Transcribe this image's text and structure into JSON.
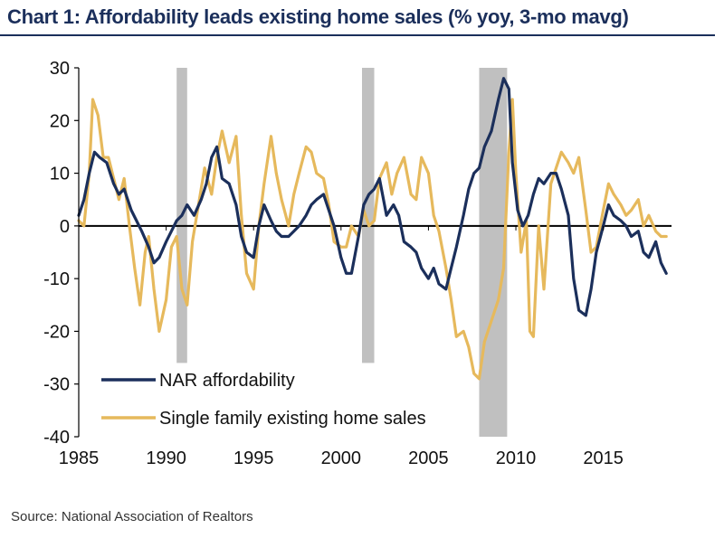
{
  "title": "Chart 1: Affordability leads existing home sales (% yoy, 3-mo mavg)",
  "source": "Source: National Association of Realtors",
  "chart_data": {
    "type": "line",
    "title": "Chart 1: Affordability leads existing home sales (% yoy, 3-mo mavg)",
    "xlabel": "",
    "ylabel": "",
    "xlim": [
      1985,
      2018.9
    ],
    "ylim": [
      -40,
      30
    ],
    "x_ticks": [
      1985,
      1990,
      1995,
      2000,
      2005,
      2010,
      2015
    ],
    "y_ticks": [
      30,
      20,
      10,
      0,
      -10,
      -20,
      -30,
      -40
    ],
    "grid": false,
    "legend_position": "bottom-left",
    "recessions": [
      [
        1990.6,
        1991.2
      ],
      [
        2001.2,
        2001.9
      ],
      [
        2007.9,
        2009.5
      ]
    ],
    "colors": {
      "NAR affordability": "#1b2f5b",
      "Single family existing home sales": "#e6b95c",
      "recession": "#c0c0c0"
    },
    "series": [
      {
        "name": "NAR affordability",
        "points": [
          [
            1985.0,
            2
          ],
          [
            1985.3,
            5
          ],
          [
            1985.6,
            10
          ],
          [
            1985.9,
            14
          ],
          [
            1986.2,
            13
          ],
          [
            1986.6,
            12
          ],
          [
            1987.0,
            8
          ],
          [
            1987.3,
            6
          ],
          [
            1987.6,
            7
          ],
          [
            1988.0,
            3
          ],
          [
            1988.3,
            1
          ],
          [
            1988.6,
            -1
          ],
          [
            1989.0,
            -4
          ],
          [
            1989.3,
            -7
          ],
          [
            1989.6,
            -6
          ],
          [
            1990.0,
            -3
          ],
          [
            1990.3,
            -1
          ],
          [
            1990.6,
            1
          ],
          [
            1990.9,
            2
          ],
          [
            1991.2,
            4
          ],
          [
            1991.6,
            2
          ],
          [
            1992.0,
            5
          ],
          [
            1992.3,
            8
          ],
          [
            1992.6,
            13
          ],
          [
            1992.9,
            15
          ],
          [
            1993.2,
            9
          ],
          [
            1993.6,
            8
          ],
          [
            1994.0,
            4
          ],
          [
            1994.3,
            -2
          ],
          [
            1994.6,
            -5
          ],
          [
            1995.0,
            -6
          ],
          [
            1995.3,
            0
          ],
          [
            1995.6,
            4
          ],
          [
            1996.0,
            1
          ],
          [
            1996.3,
            -1
          ],
          [
            1996.6,
            -2
          ],
          [
            1997.0,
            -2
          ],
          [
            1997.3,
            -1
          ],
          [
            1997.6,
            0
          ],
          [
            1998.0,
            2
          ],
          [
            1998.3,
            4
          ],
          [
            1998.6,
            5
          ],
          [
            1999.0,
            6
          ],
          [
            1999.3,
            3
          ],
          [
            1999.6,
            0
          ],
          [
            2000.0,
            -6
          ],
          [
            2000.3,
            -9
          ],
          [
            2000.6,
            -9
          ],
          [
            2001.0,
            -2
          ],
          [
            2001.3,
            4
          ],
          [
            2001.6,
            6
          ],
          [
            2001.9,
            7
          ],
          [
            2002.2,
            9
          ],
          [
            2002.6,
            2
          ],
          [
            2003.0,
            4
          ],
          [
            2003.3,
            2
          ],
          [
            2003.6,
            -3
          ],
          [
            2004.0,
            -4
          ],
          [
            2004.3,
            -5
          ],
          [
            2004.6,
            -8
          ],
          [
            2005.0,
            -10
          ],
          [
            2005.3,
            -8
          ],
          [
            2005.6,
            -11
          ],
          [
            2006.0,
            -12
          ],
          [
            2006.3,
            -8
          ],
          [
            2006.6,
            -4
          ],
          [
            2007.0,
            2
          ],
          [
            2007.3,
            7
          ],
          [
            2007.6,
            10
          ],
          [
            2007.9,
            11
          ],
          [
            2008.2,
            15
          ],
          [
            2008.6,
            18
          ],
          [
            2009.0,
            24
          ],
          [
            2009.3,
            28
          ],
          [
            2009.6,
            26
          ],
          [
            2009.8,
            12
          ],
          [
            2010.1,
            3
          ],
          [
            2010.4,
            0
          ],
          [
            2010.7,
            2
          ],
          [
            2011.0,
            6
          ],
          [
            2011.3,
            9
          ],
          [
            2011.6,
            8
          ],
          [
            2012.0,
            10
          ],
          [
            2012.3,
            10
          ],
          [
            2012.6,
            7
          ],
          [
            2013.0,
            2
          ],
          [
            2013.3,
            -10
          ],
          [
            2013.6,
            -16
          ],
          [
            2014.0,
            -17
          ],
          [
            2014.3,
            -12
          ],
          [
            2014.6,
            -5
          ],
          [
            2015.0,
            0
          ],
          [
            2015.3,
            4
          ],
          [
            2015.6,
            2
          ],
          [
            2016.0,
            1
          ],
          [
            2016.3,
            0
          ],
          [
            2016.6,
            -2
          ],
          [
            2017.0,
            -1
          ],
          [
            2017.3,
            -5
          ],
          [
            2017.6,
            -6
          ],
          [
            2018.0,
            -3
          ],
          [
            2018.3,
            -7
          ],
          [
            2018.6,
            -9
          ]
        ]
      },
      {
        "name": "Single family existing home sales",
        "points": [
          [
            1985.0,
            1
          ],
          [
            1985.3,
            0
          ],
          [
            1985.6,
            10
          ],
          [
            1985.8,
            24
          ],
          [
            1986.1,
            21
          ],
          [
            1986.4,
            13
          ],
          [
            1986.7,
            13
          ],
          [
            1987.0,
            9
          ],
          [
            1987.3,
            5
          ],
          [
            1987.6,
            9
          ],
          [
            1987.9,
            0
          ],
          [
            1988.2,
            -8
          ],
          [
            1988.5,
            -15
          ],
          [
            1988.8,
            -5
          ],
          [
            1989.0,
            -2
          ],
          [
            1989.3,
            -12
          ],
          [
            1989.6,
            -20
          ],
          [
            1990.0,
            -14
          ],
          [
            1990.3,
            -4
          ],
          [
            1990.6,
            -2
          ],
          [
            1990.9,
            -12
          ],
          [
            1991.2,
            -15
          ],
          [
            1991.5,
            -3
          ],
          [
            1991.9,
            5
          ],
          [
            1992.2,
            11
          ],
          [
            1992.6,
            6
          ],
          [
            1992.9,
            13
          ],
          [
            1993.2,
            18
          ],
          [
            1993.6,
            12
          ],
          [
            1994.0,
            17
          ],
          [
            1994.3,
            2
          ],
          [
            1994.6,
            -9
          ],
          [
            1995.0,
            -12
          ],
          [
            1995.3,
            0
          ],
          [
            1995.6,
            8
          ],
          [
            1996.0,
            17
          ],
          [
            1996.3,
            10
          ],
          [
            1996.6,
            5
          ],
          [
            1997.0,
            0
          ],
          [
            1997.3,
            6
          ],
          [
            1997.6,
            10
          ],
          [
            1998.0,
            15
          ],
          [
            1998.3,
            14
          ],
          [
            1998.6,
            10
          ],
          [
            1999.0,
            9
          ],
          [
            1999.3,
            4
          ],
          [
            1999.6,
            -3
          ],
          [
            2000.0,
            -4
          ],
          [
            2000.3,
            -4
          ],
          [
            2000.6,
            0
          ],
          [
            2001.0,
            -2
          ],
          [
            2001.3,
            3
          ],
          [
            2001.6,
            0
          ],
          [
            2001.9,
            1
          ],
          [
            2002.2,
            9
          ],
          [
            2002.6,
            12
          ],
          [
            2002.9,
            6
          ],
          [
            2003.2,
            10
          ],
          [
            2003.6,
            13
          ],
          [
            2004.0,
            6
          ],
          [
            2004.3,
            5
          ],
          [
            2004.6,
            13
          ],
          [
            2005.0,
            10
          ],
          [
            2005.3,
            2
          ],
          [
            2005.6,
            -1
          ],
          [
            2006.0,
            -8
          ],
          [
            2006.3,
            -14
          ],
          [
            2006.6,
            -21
          ],
          [
            2007.0,
            -20
          ],
          [
            2007.3,
            -23
          ],
          [
            2007.6,
            -28
          ],
          [
            2007.9,
            -29
          ],
          [
            2008.2,
            -22
          ],
          [
            2008.6,
            -18
          ],
          [
            2009.0,
            -14
          ],
          [
            2009.3,
            -8
          ],
          [
            2009.6,
            14
          ],
          [
            2009.8,
            24
          ],
          [
            2010.0,
            10
          ],
          [
            2010.3,
            -5
          ],
          [
            2010.6,
            1
          ],
          [
            2010.8,
            -20
          ],
          [
            2011.0,
            -21
          ],
          [
            2011.3,
            0
          ],
          [
            2011.6,
            -12
          ],
          [
            2012.0,
            8
          ],
          [
            2012.3,
            11
          ],
          [
            2012.6,
            14
          ],
          [
            2013.0,
            12
          ],
          [
            2013.3,
            10
          ],
          [
            2013.6,
            13
          ],
          [
            2014.0,
            3
          ],
          [
            2014.3,
            -5
          ],
          [
            2014.6,
            -4
          ],
          [
            2015.0,
            3
          ],
          [
            2015.3,
            8
          ],
          [
            2015.6,
            6
          ],
          [
            2016.0,
            4
          ],
          [
            2016.3,
            2
          ],
          [
            2016.6,
            3
          ],
          [
            2017.0,
            5
          ],
          [
            2017.3,
            0
          ],
          [
            2017.6,
            2
          ],
          [
            2018.0,
            -1
          ],
          [
            2018.3,
            -2
          ],
          [
            2018.6,
            -2
          ]
        ]
      }
    ]
  }
}
